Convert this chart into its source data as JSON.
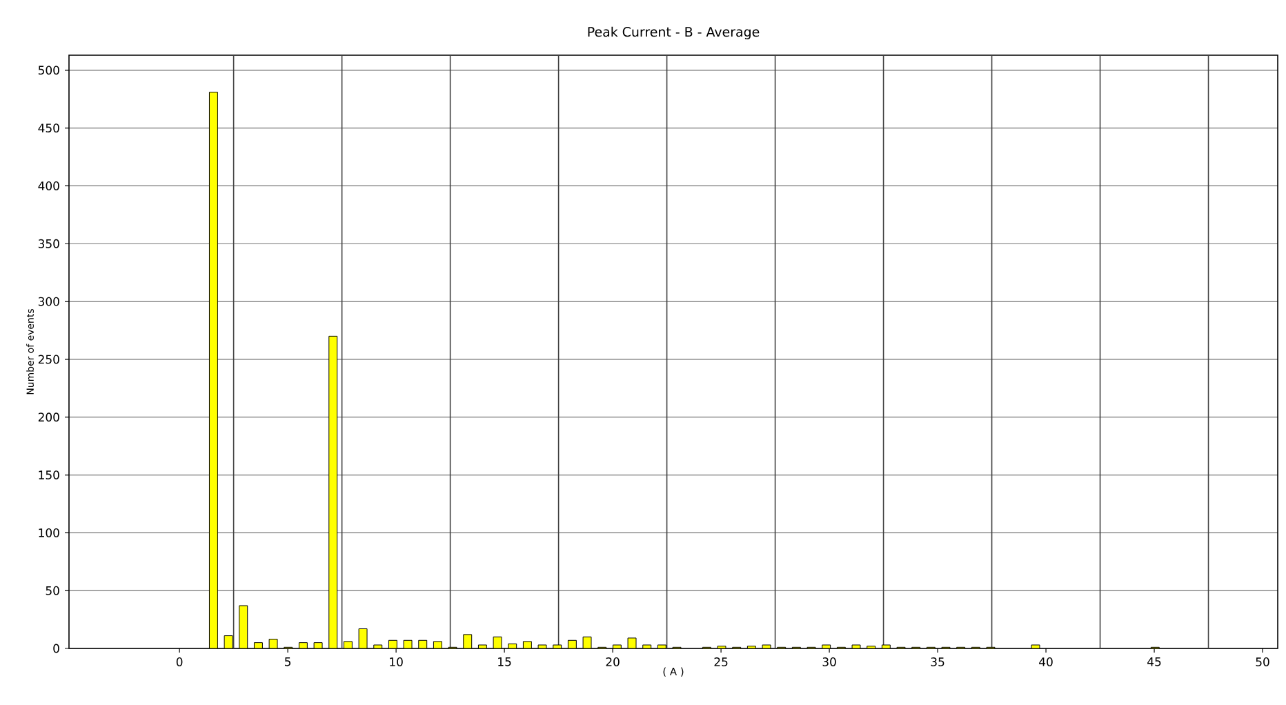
{
  "chart_data": {
    "type": "bar",
    "title": "Peak Current  -  B  -  Average",
    "xlabel": "( A )",
    "ylabel": "Number of events",
    "x": [
      1.57,
      2.26,
      2.95,
      3.64,
      4.33,
      5.02,
      5.71,
      6.4,
      7.09,
      7.78,
      8.47,
      9.16,
      9.85,
      10.54,
      11.23,
      11.92,
      12.61,
      13.3,
      13.99,
      14.68,
      15.37,
      16.06,
      16.75,
      17.44,
      18.13,
      18.82,
      19.51,
      20.2,
      20.89,
      21.58,
      22.27,
      22.96,
      23.65,
      24.34,
      25.03,
      25.72,
      26.41,
      27.1,
      27.79,
      28.48,
      29.17,
      29.86,
      30.55,
      31.24,
      31.93,
      32.62,
      33.31,
      34.0,
      34.69,
      35.38,
      36.07,
      36.76,
      37.45,
      38.14,
      38.83,
      39.52,
      40.21,
      40.9,
      41.59,
      42.28,
      42.97,
      43.66,
      44.35,
      45.04
    ],
    "values": [
      481,
      11,
      37,
      5,
      8,
      1,
      5,
      5,
      270,
      6,
      17,
      3,
      7,
      7,
      7,
      6,
      1,
      12,
      3,
      10,
      4,
      6,
      3,
      3,
      7,
      10,
      1,
      3,
      9,
      3,
      3,
      1,
      0,
      1,
      2,
      1,
      2,
      3,
      1,
      1,
      1,
      3,
      1,
      3,
      2,
      3,
      1,
      1,
      1,
      1,
      1,
      1,
      1,
      0,
      0,
      3,
      0,
      0,
      0,
      0,
      0,
      0,
      0,
      1
    ],
    "color": "#ffff00",
    "xlim": [
      -5.1,
      50.7
    ],
    "ylim": [
      0,
      513
    ],
    "xticks": [
      0,
      5,
      10,
      15,
      20,
      25,
      30,
      35,
      40,
      45,
      50
    ],
    "yticks": [
      0,
      50,
      100,
      150,
      200,
      250,
      300,
      350,
      400,
      450,
      500
    ],
    "grid": "y",
    "ref_lines": [
      {
        "axis": "x",
        "value": 2.5,
        "color": "#404040"
      },
      {
        "axis": "x",
        "value": 7.5,
        "color": "#404040"
      },
      {
        "axis": "x",
        "value": 12.5,
        "color": "#404040"
      },
      {
        "axis": "x",
        "value": 17.5,
        "color": "#404040"
      },
      {
        "axis": "x",
        "value": 22.5,
        "color": "#404040"
      },
      {
        "axis": "x",
        "value": 27.5,
        "color": "#404040"
      },
      {
        "axis": "x",
        "value": 32.5,
        "color": "#404040"
      },
      {
        "axis": "x",
        "value": 37.5,
        "color": "#404040"
      },
      {
        "axis": "x",
        "value": 42.5,
        "color": "#404040"
      },
      {
        "axis": "x",
        "value": 47.5,
        "color": "#404040"
      }
    ]
  }
}
